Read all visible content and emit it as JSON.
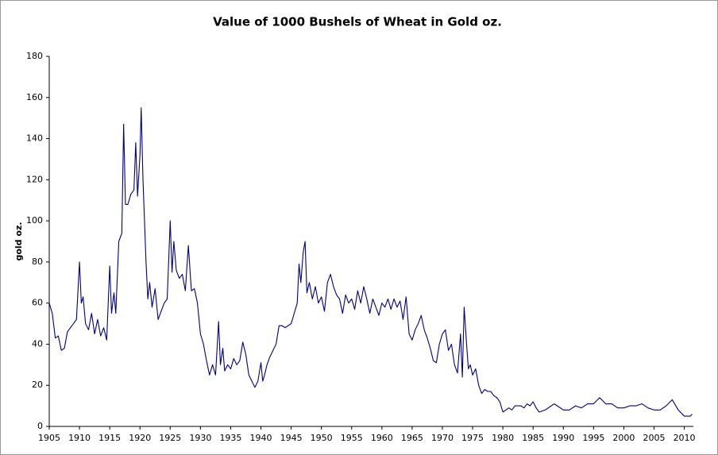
{
  "chart_data": {
    "type": "line",
    "title": "Value of 1000 Bushels of Wheat in Gold oz.",
    "y_label": "gold oz.",
    "xlim": [
      1905,
      2011.5
    ],
    "ylim": [
      0,
      180
    ],
    "xticks": [
      1905,
      1910,
      1915,
      1920,
      1925,
      1930,
      1935,
      1940,
      1945,
      1950,
      1955,
      1960,
      1965,
      1970,
      1975,
      1980,
      1985,
      1990,
      1995,
      2000,
      2005,
      2010
    ],
    "yticks": [
      0,
      20,
      40,
      60,
      80,
      100,
      120,
      140,
      160,
      180
    ],
    "grid": false,
    "series": [
      {
        "name": "wheat",
        "color": "#000080",
        "x": [
          1905,
          1905.5,
          1906,
          1906.5,
          1907,
          1907.5,
          1908,
          1908.5,
          1909,
          1909.5,
          1910,
          1910.3,
          1910.6,
          1911,
          1911.5,
          1912,
          1912.5,
          1913,
          1913.5,
          1914,
          1914.5,
          1915,
          1915.3,
          1915.7,
          1916,
          1916.5,
          1917,
          1917.3,
          1917.6,
          1918,
          1918.5,
          1919,
          1919.3,
          1919.6,
          1920,
          1920.2,
          1920.5,
          1921,
          1921.3,
          1921.6,
          1922,
          1922.5,
          1923,
          1923.5,
          1924,
          1924.5,
          1925,
          1925.3,
          1925.6,
          1926,
          1926.5,
          1927,
          1927.5,
          1928,
          1928.5,
          1929,
          1929.5,
          1930,
          1930.5,
          1931,
          1931.5,
          1932,
          1932.5,
          1933,
          1933.3,
          1933.7,
          1934,
          1934.5,
          1935,
          1935.5,
          1936,
          1936.5,
          1937,
          1937.5,
          1938,
          1938.5,
          1939,
          1939.5,
          1940,
          1940.3,
          1940.6,
          1941,
          1941.5,
          1942,
          1942.5,
          1943,
          1943.5,
          1944,
          1944.5,
          1945,
          1945.5,
          1946,
          1946.3,
          1946.6,
          1947,
          1947.3,
          1947.6,
          1948,
          1948.5,
          1949,
          1949.5,
          1950,
          1950.5,
          1951,
          1951.5,
          1952,
          1952.5,
          1953,
          1953.5,
          1954,
          1954.5,
          1955,
          1955.5,
          1956,
          1956.5,
          1957,
          1957.5,
          1958,
          1958.5,
          1959,
          1959.5,
          1960,
          1960.5,
          1961,
          1961.5,
          1962,
          1962.5,
          1963,
          1963.5,
          1964,
          1964.5,
          1965,
          1965.5,
          1966,
          1966.5,
          1967,
          1967.5,
          1968,
          1968.5,
          1969,
          1969.5,
          1970,
          1970.5,
          1971,
          1971.5,
          1972,
          1972.5,
          1973,
          1973.3,
          1973.6,
          1974,
          1974.3,
          1974.6,
          1975,
          1975.5,
          1976,
          1976.5,
          1977,
          1977.5,
          1978,
          1978.5,
          1979,
          1979.5,
          1980,
          1980.5,
          1981,
          1981.5,
          1982,
          1983,
          1983.5,
          1984,
          1984.5,
          1985,
          1985.5,
          1986,
          1987,
          1988,
          1988.5,
          1989,
          1990,
          1991,
          1992,
          1993,
          1994,
          1995,
          1996,
          1997,
          1998,
          1999,
          2000,
          2001,
          2002,
          2003,
          2004,
          2005,
          2006,
          2007,
          2008,
          2009,
          2010,
          2011,
          2011.3
        ],
        "values": [
          60,
          55,
          43,
          44,
          37,
          38,
          46,
          48,
          50,
          52,
          80,
          60,
          63,
          50,
          47,
          55,
          45,
          52,
          44,
          48,
          42,
          78,
          55,
          65,
          55,
          90,
          94,
          147,
          108,
          108,
          113,
          115,
          138,
          112,
          132,
          155,
          120,
          80,
          62,
          70,
          58,
          67,
          52,
          56,
          60,
          62,
          100,
          75,
          90,
          76,
          72,
          74,
          66,
          88,
          66,
          67,
          60,
          45,
          40,
          32,
          25,
          30,
          25,
          51,
          30,
          38,
          27,
          30,
          28,
          33,
          30,
          32,
          41,
          35,
          25,
          22,
          19,
          22,
          31,
          22,
          25,
          30,
          34,
          37,
          40,
          49,
          49,
          48,
          49,
          50,
          55,
          60,
          79,
          70,
          85,
          90,
          65,
          70,
          62,
          68,
          60,
          63,
          56,
          70,
          74,
          68,
          64,
          62,
          55,
          64,
          60,
          62,
          57,
          66,
          60,
          68,
          62,
          55,
          62,
          58,
          54,
          60,
          58,
          62,
          57,
          62,
          58,
          61,
          52,
          63,
          45,
          42,
          47,
          50,
          54,
          47,
          43,
          38,
          32,
          31,
          40,
          45,
          47,
          37,
          40,
          30,
          26,
          45,
          24,
          58,
          40,
          28,
          30,
          25,
          28,
          20,
          16,
          18,
          17,
          17,
          15,
          14,
          12,
          7,
          8,
          9,
          8,
          10,
          10,
          9,
          11,
          10,
          12,
          9,
          7,
          8,
          10,
          11,
          10,
          8,
          8,
          10,
          9,
          11,
          11,
          14,
          11,
          11,
          9,
          9,
          10,
          10,
          11,
          9,
          8,
          8,
          10,
          13,
          8,
          5,
          5,
          6
        ]
      }
    ]
  }
}
